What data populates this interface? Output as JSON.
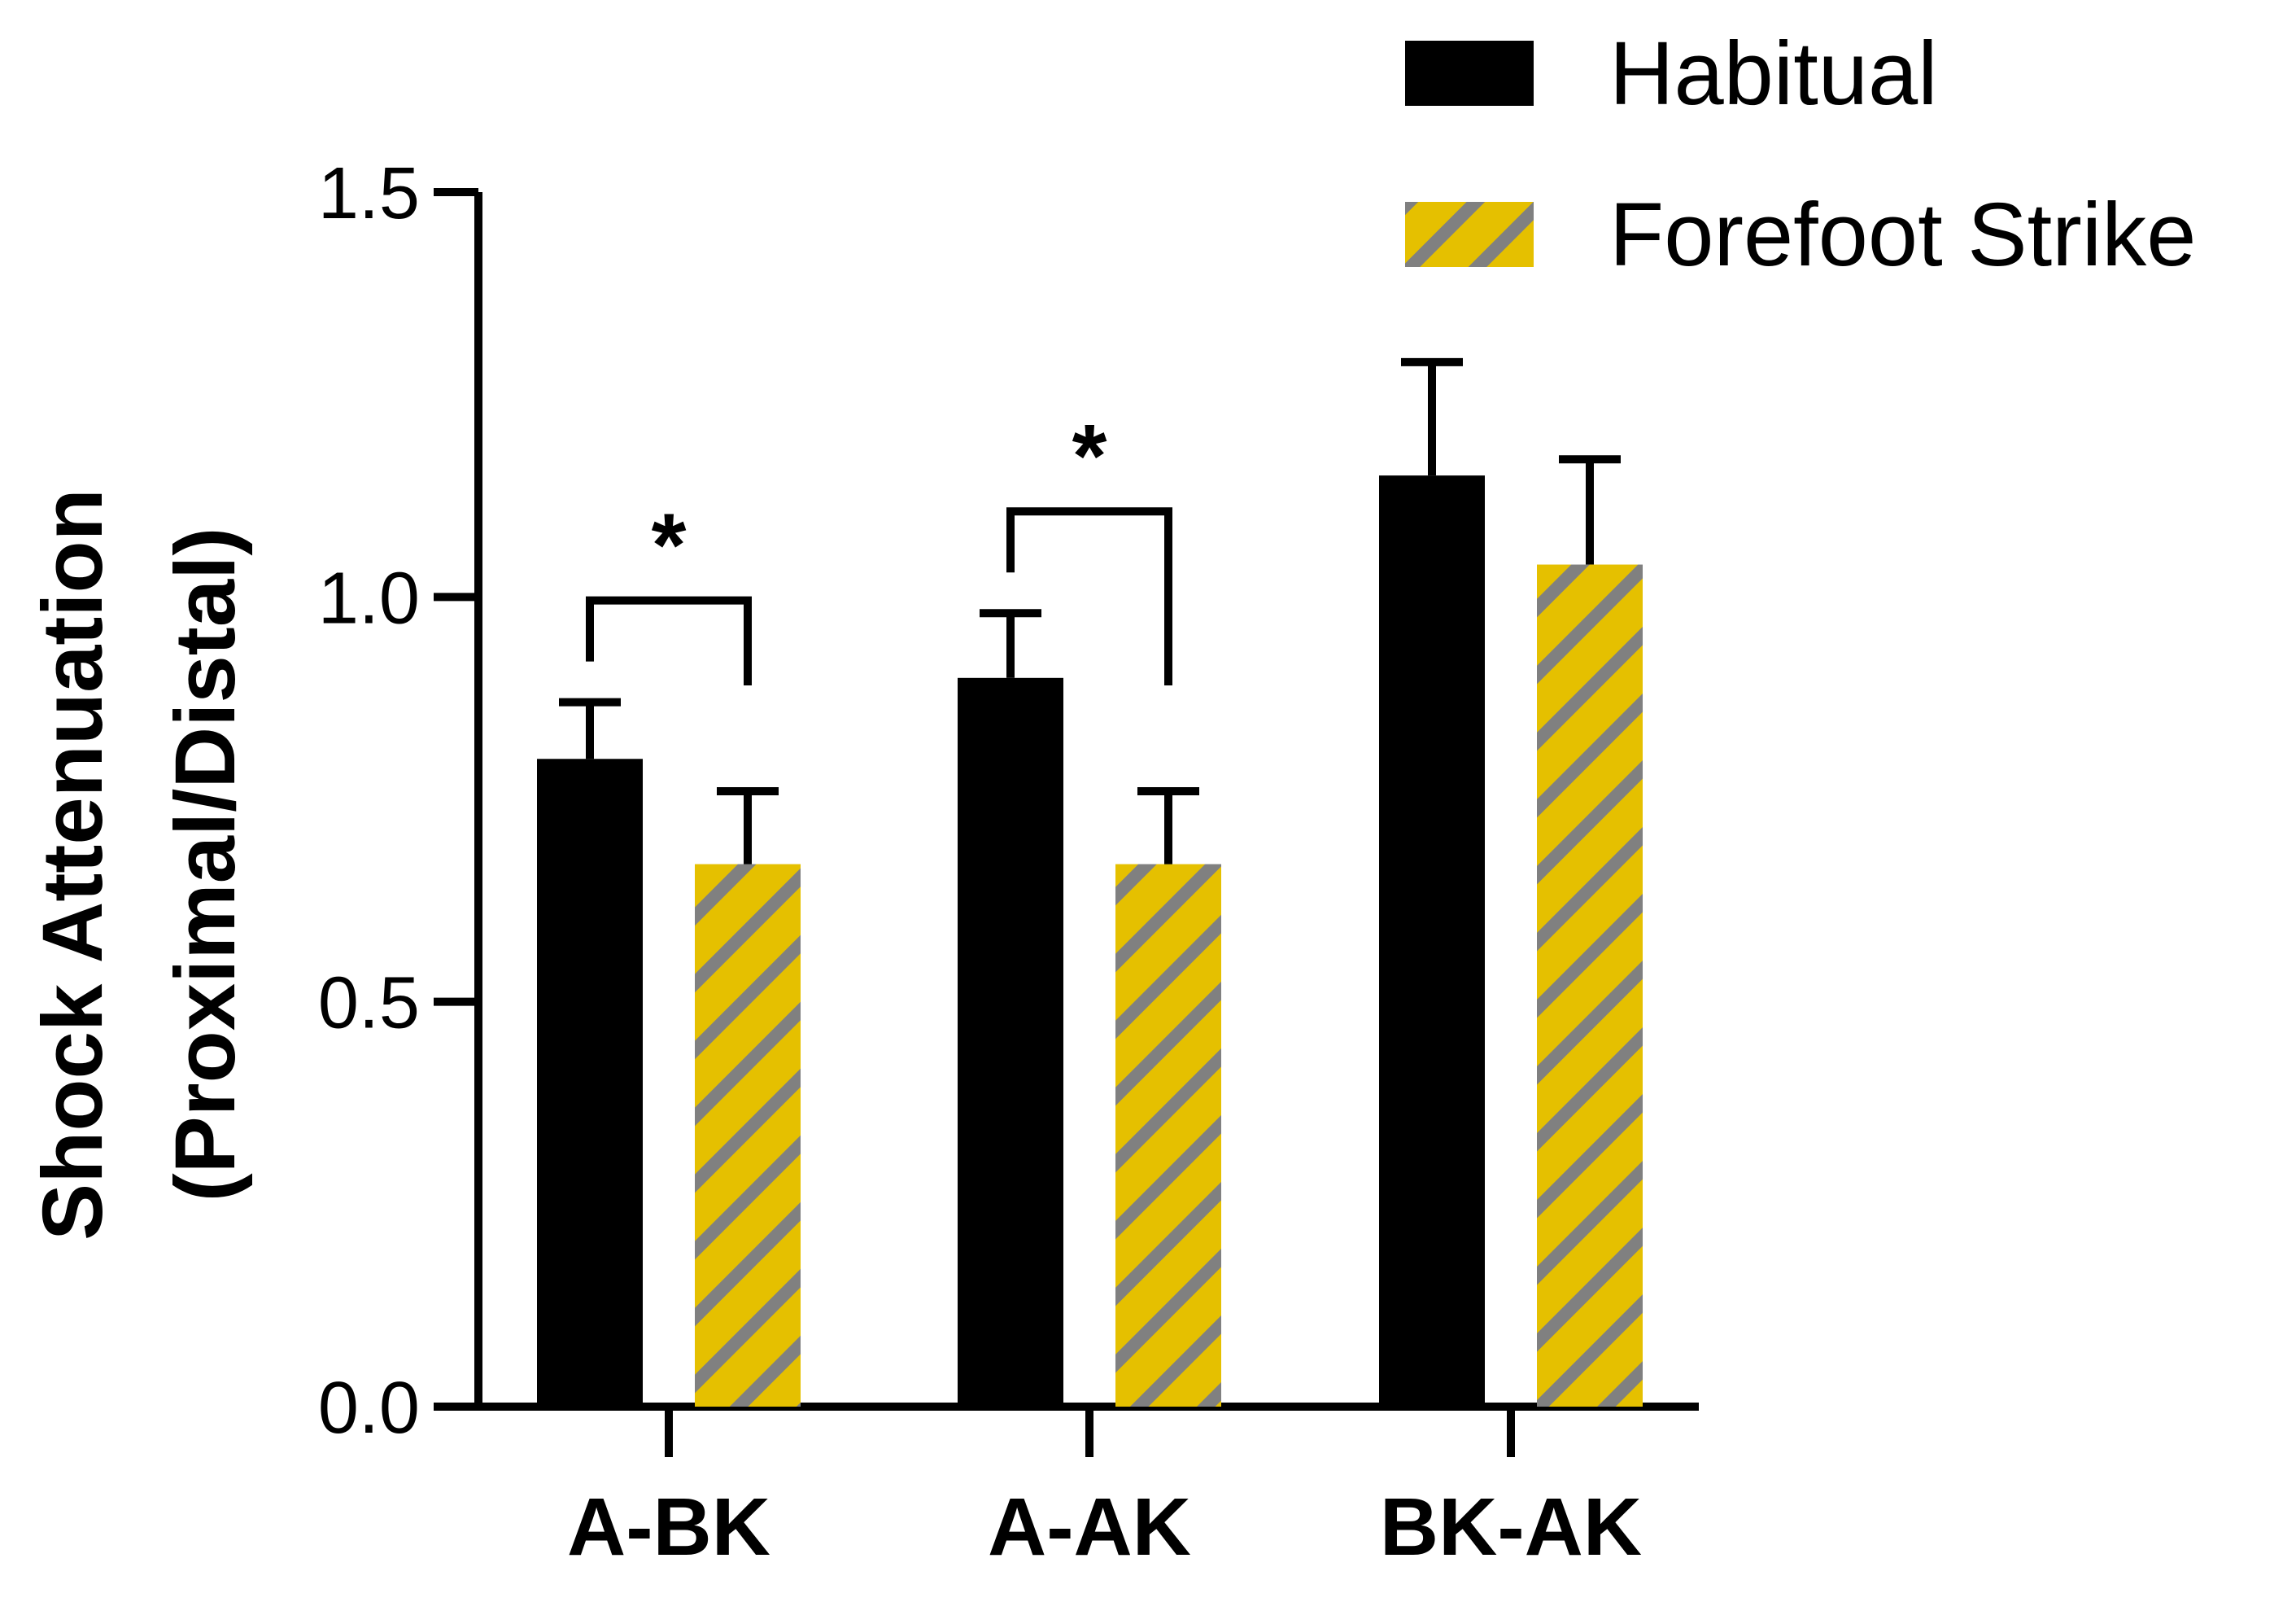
{
  "chart_data": {
    "type": "bar",
    "title": "",
    "xlabel": "",
    "ylabel_lines": [
      "Shock Attenuation",
      "(Proximal/Distal)"
    ],
    "ylim": [
      0,
      1.5
    ],
    "yticks": [
      0.0,
      0.5,
      1.0,
      1.5
    ],
    "ytick_labels": [
      "0.0",
      "0.5",
      "1.0",
      "1.5"
    ],
    "categories": [
      "A-BK",
      "A-AK",
      "BK-AK"
    ],
    "legend_position": "top-right",
    "series": [
      {
        "name": "Habitual",
        "style": "solid",
        "color": "#000000",
        "values": [
          0.8,
          0.9,
          1.15
        ],
        "errors": [
          0.07,
          0.08,
          0.14
        ]
      },
      {
        "name": "Forefoot Strike",
        "style": "hatched",
        "color": "#E5C000",
        "hatch_color": "#808080",
        "values": [
          0.67,
          0.67,
          1.04
        ],
        "errors": [
          0.09,
          0.09,
          0.13
        ]
      }
    ],
    "significance": [
      {
        "category_index": 0,
        "label": "*"
      },
      {
        "category_index": 1,
        "label": "*"
      }
    ]
  }
}
